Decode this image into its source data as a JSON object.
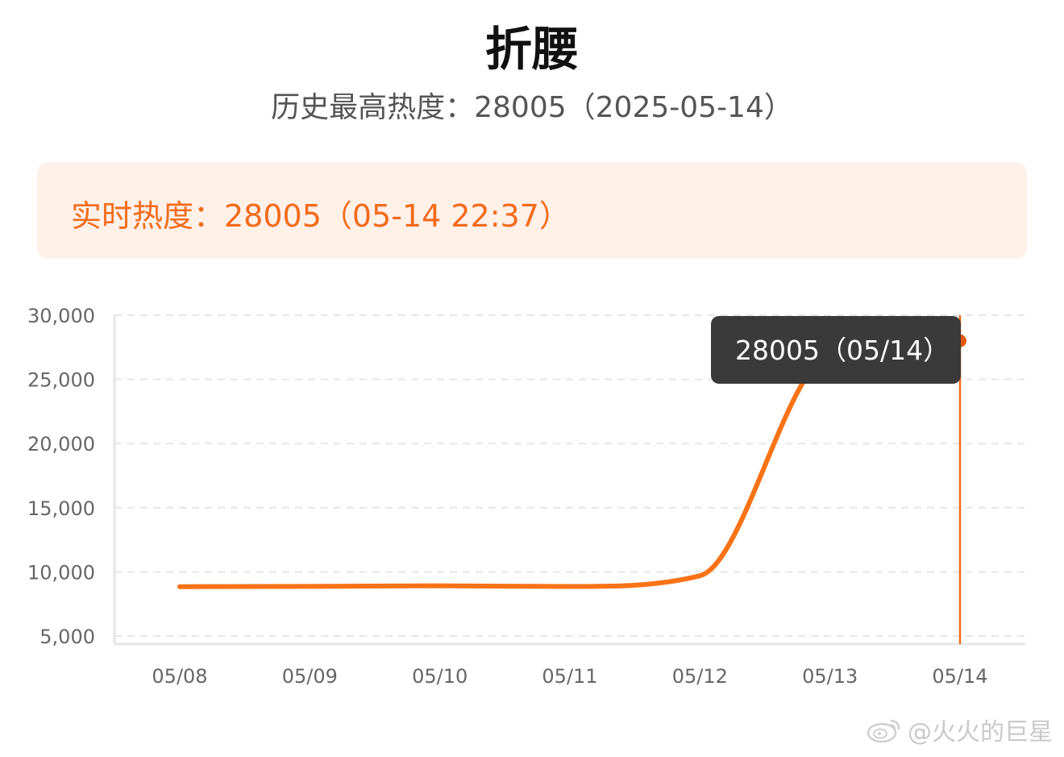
{
  "header": {
    "title": "折腰",
    "peak_label": "历史最高热度：28005（2025-05-14）"
  },
  "realtime": {
    "text": "实时热度：28005（05-14 22:37）"
  },
  "tooltip": {
    "text": "28005（05/14）"
  },
  "watermark": {
    "text": "@火火的巨星"
  },
  "colors": {
    "line": "#f97316",
    "accent": "#f26a1b",
    "banner_bg": "#fff0e8",
    "tooltip_bg": "#3a3a3a"
  },
  "chart_data": {
    "type": "line",
    "x": [
      "05/08",
      "05/09",
      "05/10",
      "05/11",
      "05/12",
      "05/13",
      "05/14"
    ],
    "series": [
      {
        "values": [
          [
            "05/08",
            8850
          ],
          [
            "05/09",
            8870
          ],
          [
            "05/10",
            8920
          ],
          [
            "05/11",
            8860
          ],
          [
            "05/12",
            9700
          ],
          [
            "05/13",
            27000
          ],
          [
            "05/14",
            28005
          ]
        ]
      }
    ],
    "y_ticks": [
      "30,000",
      "25,000",
      "20,000",
      "15,000",
      "10,000",
      "5,000"
    ],
    "ylim": [
      5000,
      30000
    ],
    "grid": true,
    "highlight_point": {
      "x": "05/14",
      "y": 28005
    }
  }
}
